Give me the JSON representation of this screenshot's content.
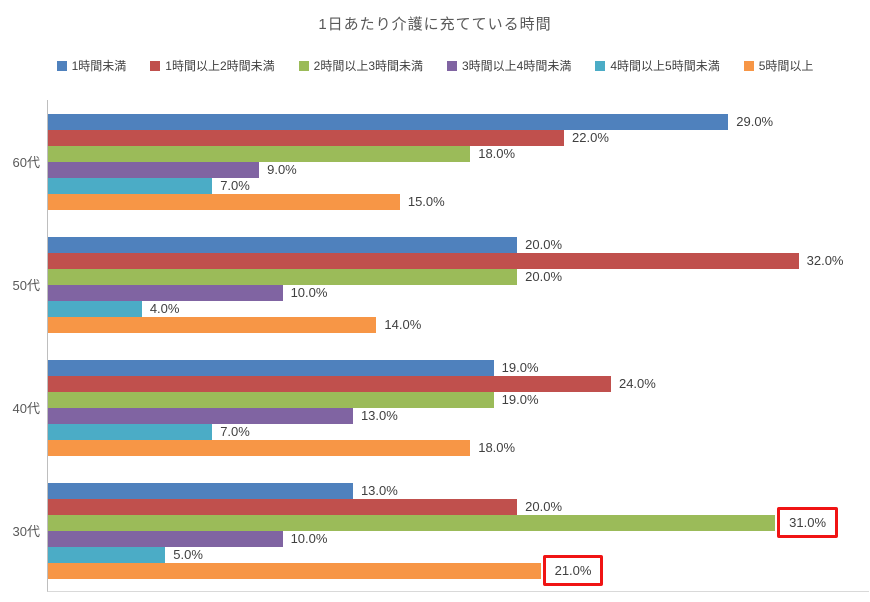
{
  "title": "1日あたり介護に充てている時間",
  "chart_data": {
    "type": "bar",
    "orientation": "horizontal",
    "title": "1日あたり介護に充てている時間",
    "xlabel": "",
    "ylabel": "",
    "xlim": [
      0,
      35
    ],
    "grid": false,
    "legend_position": "top",
    "value_label_format": "percent_one_decimal",
    "categories": [
      "60代",
      "50代",
      "40代",
      "30代"
    ],
    "series": [
      {
        "name": "1時間未満",
        "color": "#4F81BD",
        "values": [
          29.0,
          20.0,
          19.0,
          13.0
        ],
        "labels": [
          "29.0%",
          "20.0%",
          "19.0%",
          "13.0%"
        ]
      },
      {
        "name": "1時間以上2時間未満",
        "color": "#C0504D",
        "values": [
          22.0,
          32.0,
          24.0,
          20.0
        ],
        "labels": [
          "22.0%",
          "32.0%",
          "24.0%",
          "20.0%"
        ]
      },
      {
        "name": "2時間以上3時間未満",
        "color": "#9BBB59",
        "values": [
          18.0,
          20.0,
          19.0,
          31.0
        ],
        "labels": [
          "18.0%",
          "20.0%",
          "19.0%",
          "31.0%"
        ]
      },
      {
        "name": "3時間以上4時間未満",
        "color": "#8064A2",
        "values": [
          9.0,
          10.0,
          13.0,
          10.0
        ],
        "labels": [
          "9.0%",
          "10.0%",
          "13.0%",
          "10.0%"
        ]
      },
      {
        "name": "4時間以上5時間未満",
        "color": "#4BACC6",
        "values": [
          7.0,
          4.0,
          7.0,
          5.0
        ],
        "labels": [
          "7.0%",
          "4.0%",
          "7.0%",
          "5.0%"
        ]
      },
      {
        "name": "5時間以上",
        "color": "#F79646",
        "values": [
          15.0,
          14.0,
          18.0,
          21.0
        ],
        "labels": [
          "15.0%",
          "14.0%",
          "18.0%",
          "21.0%"
        ]
      }
    ],
    "highlighted": [
      {
        "category": "30代",
        "series": "2時間以上3時間未満",
        "label": "31.0%"
      },
      {
        "category": "30代",
        "series": "5時間以上",
        "label": "21.0%"
      }
    ],
    "highlight_color": "#F01414",
    "axis_line_color": "#BEBEBE",
    "text_color": "#595959"
  }
}
